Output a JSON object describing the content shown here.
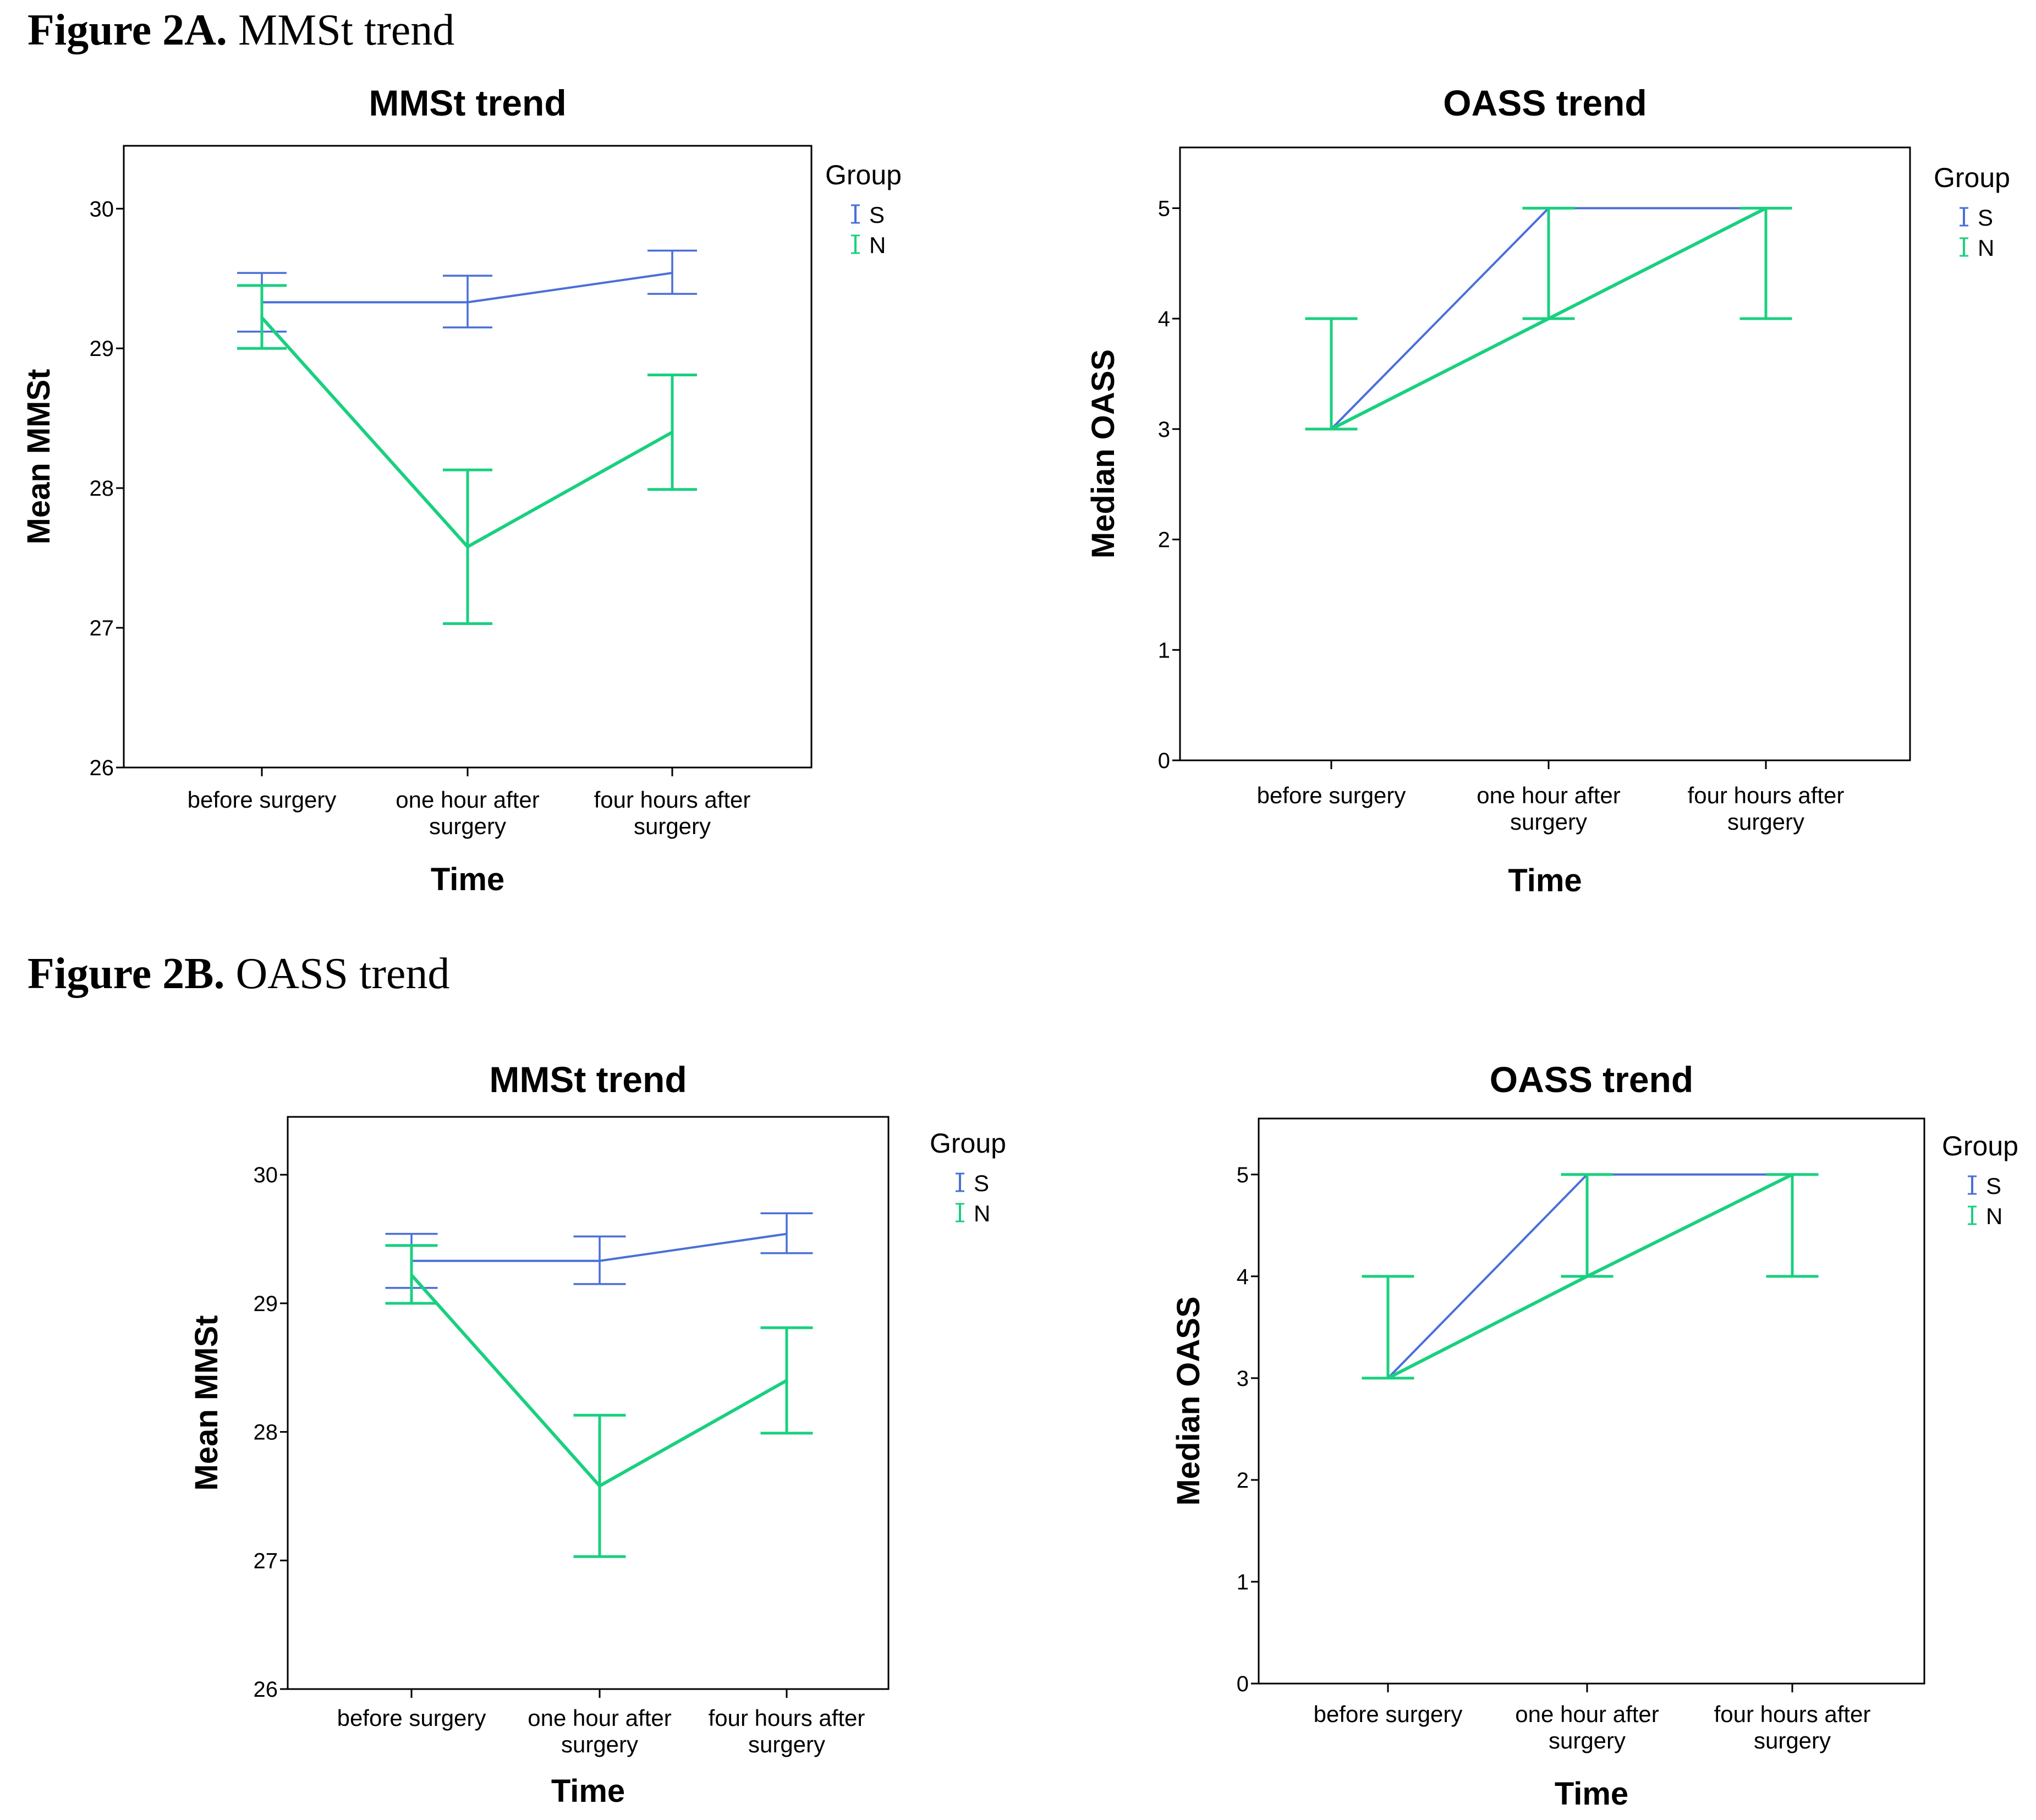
{
  "captions": [
    {
      "label": "Figure 2A.",
      "text": " MMSt trend"
    },
    {
      "label": "Figure 2B.",
      "text": " OASS trend"
    }
  ],
  "colors": {
    "S": "#4a6fd8",
    "N": "#19d07f",
    "N_dark": "#1ec46a"
  },
  "chart_data": [
    {
      "type": "line",
      "title": "MMSt  trend",
      "xlabel": "Time",
      "ylabel": "Mean MMSt",
      "categories": [
        [
          "before surgery"
        ],
        [
          "one hour after",
          "surgery"
        ],
        [
          "four hours after",
          "surgery"
        ]
      ],
      "ylim": [
        26,
        30.45
      ],
      "yticks": [
        26,
        27,
        28,
        29,
        30
      ],
      "legend": {
        "title": "Group",
        "entries": [
          "S",
          "N"
        ],
        "position": "top-right outside"
      },
      "series": [
        {
          "name": "S",
          "values": [
            29.33,
            29.33,
            29.54
          ],
          "lower": [
            29.12,
            29.15,
            29.39
          ],
          "upper": [
            29.54,
            29.52,
            29.7
          ]
        },
        {
          "name": "N",
          "values": [
            29.22,
            27.58,
            28.4
          ],
          "lower": [
            29.0,
            27.03,
            27.99
          ],
          "upper": [
            29.45,
            28.13,
            28.81
          ]
        }
      ]
    },
    {
      "type": "line",
      "title": "OASS trend",
      "xlabel": "Time",
      "ylabel": "Median OASS",
      "categories": [
        [
          "before surgery"
        ],
        [
          "one hour after",
          "surgery"
        ],
        [
          "four hours after",
          "surgery"
        ]
      ],
      "ylim": [
        0,
        5.55
      ],
      "yticks": [
        0,
        1,
        2,
        3,
        4,
        5
      ],
      "legend": {
        "title": "Group",
        "entries": [
          "S",
          "N"
        ],
        "position": "top-right outside"
      },
      "series": [
        {
          "name": "S",
          "values": [
            3,
            5,
            5
          ],
          "lower": [
            3,
            5,
            5
          ],
          "upper": [
            3,
            5,
            5
          ]
        },
        {
          "name": "N",
          "values": [
            3,
            4,
            5
          ],
          "lower": [
            3,
            4,
            4
          ],
          "upper": [
            4,
            5,
            5
          ]
        }
      ]
    },
    {
      "type": "line",
      "title": "MMSt  trend",
      "xlabel": "Time",
      "ylabel": "Mean MMSt",
      "categories": [
        [
          "before surgery"
        ],
        [
          "one hour after",
          "surgery"
        ],
        [
          "four hours after",
          "surgery"
        ]
      ],
      "ylim": [
        26,
        30.45
      ],
      "yticks": [
        26,
        27,
        28,
        29,
        30
      ],
      "legend": {
        "title": "Group",
        "entries": [
          "S",
          "N"
        ],
        "position": "top-right outside"
      },
      "series": [
        {
          "name": "S",
          "values": [
            29.33,
            29.33,
            29.54
          ],
          "lower": [
            29.12,
            29.15,
            29.39
          ],
          "upper": [
            29.54,
            29.52,
            29.7
          ]
        },
        {
          "name": "N",
          "values": [
            29.22,
            27.58,
            28.4
          ],
          "lower": [
            29.0,
            27.03,
            27.99
          ],
          "upper": [
            29.45,
            28.13,
            28.81
          ]
        }
      ]
    },
    {
      "type": "line",
      "title": "OASS trend",
      "xlabel": "Time",
      "ylabel": "Median OASS",
      "categories": [
        [
          "before surgery"
        ],
        [
          "one hour after",
          "surgery"
        ],
        [
          "four hours after",
          "surgery"
        ]
      ],
      "ylim": [
        0,
        5.55
      ],
      "yticks": [
        0,
        1,
        2,
        3,
        4,
        5
      ],
      "legend": {
        "title": "Group",
        "entries": [
          "S",
          "N"
        ],
        "position": "top-right outside"
      },
      "series": [
        {
          "name": "S",
          "values": [
            3,
            5,
            5
          ],
          "lower": [
            3,
            5,
            5
          ],
          "upper": [
            3,
            5,
            5
          ]
        },
        {
          "name": "N",
          "values": [
            3,
            4,
            5
          ],
          "lower": [
            3,
            4,
            4
          ],
          "upper": [
            4,
            5,
            5
          ]
        }
      ]
    }
  ]
}
